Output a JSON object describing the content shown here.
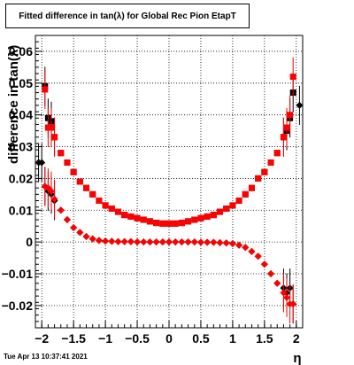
{
  "title": "Fitted difference in tan(λ) for Global Rec Pion EtapT",
  "timestamp": "Tue Apr 13 10:37:41 2021",
  "chart_data": {
    "type": "scatter",
    "title": "Fitted difference in tan(λ) for Global Rec Pion EtapT",
    "xlabel": "η",
    "ylabel": "difference in tan(λ)",
    "xlim": [
      -2.1,
      2.1
    ],
    "ylim": [
      -0.027,
      0.065
    ],
    "grid": true,
    "xticks": [
      -2,
      -1.5,
      -1,
      -0.5,
      0,
      0.5,
      1,
      1.5,
      2
    ],
    "xtick_labels": [
      "−2",
      "−1.5",
      "−1",
      "−0.5",
      "0",
      "0.5",
      "1",
      "1.5",
      "2"
    ],
    "yticks": [
      -0.02,
      -0.01,
      0,
      0.01,
      0.02,
      0.03,
      0.04,
      0.05,
      0.06
    ],
    "ytick_labels": [
      "−0.02",
      "−0.01",
      "0",
      "0.01",
      "0.02",
      "0.03",
      "0.04",
      "0.05",
      "0.06"
    ],
    "series": [
      {
        "marker": "square",
        "color": "#000000",
        "x": [
          -1.95,
          -1.9,
          -1.85,
          -1.8,
          -1.7,
          -1.6,
          -1.5,
          -1.4,
          -1.3,
          -1.2,
          -1.1,
          -1.0,
          -0.9,
          -0.8,
          -0.7,
          -0.6,
          -0.5,
          -0.4,
          -0.3,
          -0.2,
          -0.1,
          0.0,
          0.1,
          0.2,
          0.3,
          0.4,
          0.5,
          0.6,
          0.7,
          0.8,
          0.9,
          1.0,
          1.1,
          1.2,
          1.3,
          1.4,
          1.5,
          1.6,
          1.7,
          1.8,
          1.85,
          1.9,
          1.95
        ],
        "y": [
          0.049,
          0.039,
          0.038,
          0.033,
          0.028,
          0.025,
          0.022,
          0.019,
          0.017,
          0.015,
          0.013,
          0.0115,
          0.0105,
          0.0095,
          0.0085,
          0.008,
          0.0075,
          0.007,
          0.0065,
          0.006,
          0.0058,
          0.0058,
          0.0058,
          0.006,
          0.0065,
          0.007,
          0.0075,
          0.008,
          0.0085,
          0.0095,
          0.0105,
          0.0115,
          0.013,
          0.015,
          0.017,
          0.02,
          0.022,
          0.025,
          0.028,
          0.033,
          0.035,
          0.039,
          0.047
        ]
      },
      {
        "marker": "square",
        "color": "#ff0000",
        "x": [
          -1.95,
          -1.9,
          -1.85,
          -1.8,
          -1.7,
          -1.6,
          -1.5,
          -1.4,
          -1.3,
          -1.2,
          -1.1,
          -1.0,
          -0.9,
          -0.8,
          -0.7,
          -0.6,
          -0.5,
          -0.4,
          -0.3,
          -0.2,
          -0.1,
          0.0,
          0.1,
          0.2,
          0.3,
          0.4,
          0.5,
          0.6,
          0.7,
          0.8,
          0.9,
          1.0,
          1.1,
          1.2,
          1.3,
          1.4,
          1.5,
          1.6,
          1.7,
          1.8,
          1.85,
          1.9,
          1.95
        ],
        "y": [
          0.048,
          0.036,
          0.036,
          0.033,
          0.028,
          0.025,
          0.022,
          0.019,
          0.017,
          0.015,
          0.013,
          0.0115,
          0.0105,
          0.0095,
          0.0085,
          0.008,
          0.0075,
          0.007,
          0.0065,
          0.006,
          0.0058,
          0.0058,
          0.0058,
          0.006,
          0.0065,
          0.007,
          0.0075,
          0.008,
          0.0085,
          0.0095,
          0.0105,
          0.0115,
          0.013,
          0.015,
          0.017,
          0.02,
          0.022,
          0.025,
          0.028,
          0.033,
          0.036,
          0.04,
          0.052
        ]
      },
      {
        "marker": "diamond",
        "color": "#000000",
        "x": [
          -2.05,
          -2.0,
          -1.95,
          -1.9,
          -1.85,
          -1.8,
          -1.7,
          -1.6,
          -1.5,
          -1.4,
          -1.3,
          -1.2,
          -1.1,
          -1.0,
          -0.9,
          -0.8,
          -0.7,
          -0.6,
          -0.5,
          -0.4,
          -0.3,
          -0.2,
          -0.1,
          0.0,
          0.1,
          0.2,
          0.3,
          0.4,
          0.5,
          0.6,
          0.7,
          0.8,
          0.9,
          1.0,
          1.1,
          1.2,
          1.3,
          1.4,
          1.5,
          1.6,
          1.7,
          1.8,
          1.85,
          1.9,
          1.95,
          2.05
        ],
        "y": [
          0.025,
          0.025,
          0.0175,
          0.016,
          0.015,
          0.013,
          0.01,
          0.007,
          0.0045,
          0.003,
          0.0017,
          0.001,
          0.0005,
          0.0003,
          0.0002,
          0.0001,
          0.0001,
          0.0001,
          0.0,
          0.0,
          0.0,
          0.0,
          0.0,
          0.0,
          0.0,
          0.0,
          0.0,
          0.0,
          -0.0001,
          -0.0001,
          -0.0001,
          -0.0002,
          -0.0003,
          -0.0005,
          -0.001,
          -0.0017,
          -0.003,
          -0.0045,
          -0.007,
          -0.01,
          -0.013,
          -0.0145,
          -0.016,
          -0.0145,
          -0.0195,
          0.043
        ]
      },
      {
        "marker": "diamond",
        "color": "#ff0000",
        "x": [
          -1.95,
          -1.9,
          -1.85,
          -1.8,
          -1.7,
          -1.6,
          -1.5,
          -1.4,
          -1.3,
          -1.2,
          -1.1,
          -1.0,
          -0.9,
          -0.8,
          -0.7,
          -0.6,
          -0.5,
          -0.4,
          -0.3,
          -0.2,
          -0.1,
          0.0,
          0.1,
          0.2,
          0.3,
          0.4,
          0.5,
          0.6,
          0.7,
          0.8,
          0.9,
          1.0,
          1.1,
          1.2,
          1.3,
          1.4,
          1.5,
          1.6,
          1.7,
          1.8,
          1.85,
          1.9,
          1.95
        ],
        "y": [
          0.0175,
          0.017,
          0.016,
          0.0135,
          0.01,
          0.007,
          0.0045,
          0.003,
          0.0017,
          0.001,
          0.0005,
          0.0003,
          0.0002,
          0.0001,
          0.0001,
          0.0001,
          0.0,
          0.0,
          0.0,
          0.0,
          0.0,
          0.0,
          0.0,
          0.0,
          0.0,
          0.0,
          -0.0001,
          -0.0001,
          -0.0001,
          -0.0002,
          -0.0003,
          -0.0005,
          -0.001,
          -0.0017,
          -0.003,
          -0.0045,
          -0.007,
          -0.01,
          -0.013,
          -0.016,
          -0.0175,
          -0.0195,
          -0.0195
        ]
      }
    ]
  }
}
